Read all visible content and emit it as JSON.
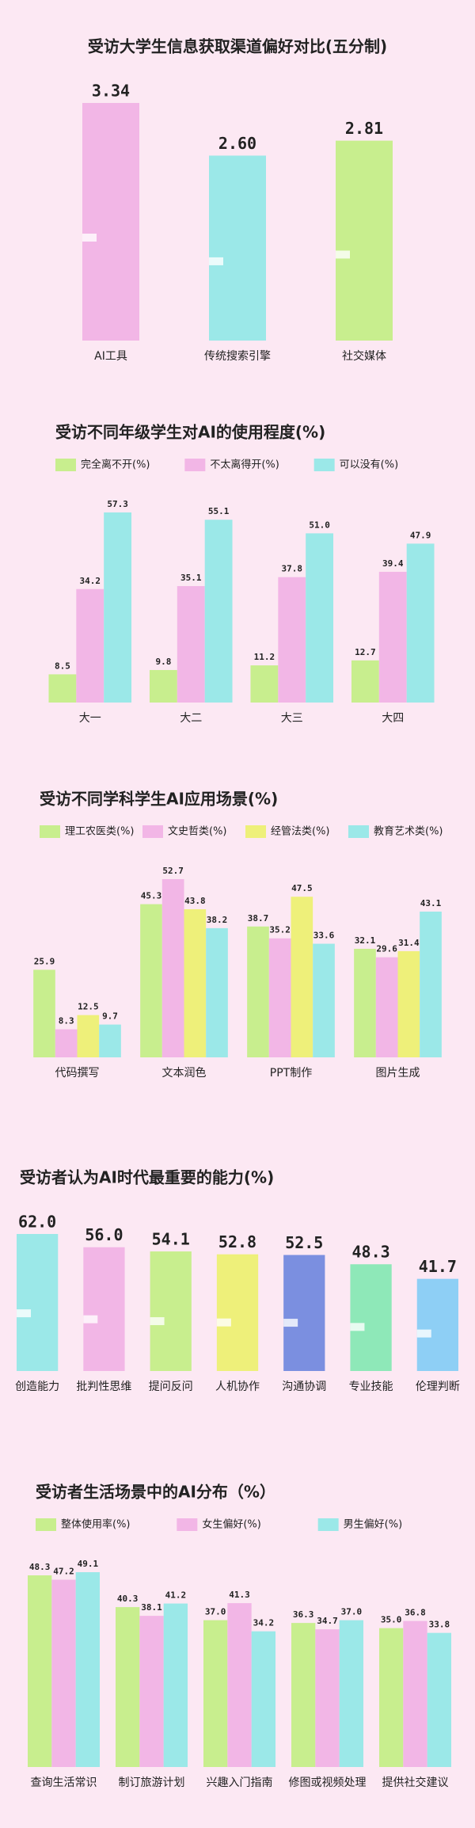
{
  "chart_data": [
    {
      "type": "bar",
      "title": "受访大学生信息获取渠道偏好对比(五分制)",
      "categories": [
        "AI工具",
        "传统搜索引擎",
        "社交媒体"
      ],
      "values": [
        3.34,
        2.6,
        2.81
      ],
      "value_labels": [
        "3.34",
        "2.60",
        "2.81"
      ],
      "colors": [
        "#f2b6e6",
        "#9be8e8",
        "#c8ee8e"
      ]
    },
    {
      "type": "grouped-bar",
      "title": "受访不同年级学生对AI的使用程度(%)",
      "categories": [
        "大一",
        "大二",
        "大三",
        "大四"
      ],
      "series": [
        {
          "name": "完全离不开(%)",
          "color": "#c8ee8e",
          "values": [
            8.5,
            9.8,
            11.2,
            12.7
          ]
        },
        {
          "name": "不太离得开(%)",
          "color": "#f2b6e6",
          "values": [
            34.2,
            35.1,
            37.8,
            39.4
          ]
        },
        {
          "name": "可以没有(%)",
          "color": "#9be8e8",
          "values": [
            57.3,
            55.1,
            51.0,
            47.9
          ],
          "value_labels": [
            "57.3",
            "55.1",
            "51.0",
            "47.9"
          ]
        }
      ]
    },
    {
      "type": "grouped-bar",
      "title": "受访不同学科学生AI应用场景(%)",
      "categories": [
        "代码撰写",
        "文本润色",
        "PPT制作",
        "图片生成"
      ],
      "series": [
        {
          "name": "理工农医类(%)",
          "color": "#c8ee8e",
          "values": [
            25.9,
            45.3,
            38.7,
            32.1
          ]
        },
        {
          "name": "文史哲类(%)",
          "color": "#f2b6e6",
          "values": [
            8.3,
            52.7,
            35.2,
            29.6
          ]
        },
        {
          "name": "经管法类(%)",
          "color": "#eef07a",
          "values": [
            12.5,
            43.8,
            47.5,
            31.4
          ]
        },
        {
          "name": "教育艺术类(%)",
          "color": "#9be8e8",
          "values": [
            9.7,
            38.2,
            33.6,
            43.1
          ]
        }
      ]
    },
    {
      "type": "bar",
      "title": "受访者认为AI时代最重要的能力(%)",
      "categories": [
        "创造能力",
        "批判性思维",
        "提问反问",
        "人机协作",
        "沟通协调",
        "专业技能",
        "伦理判断"
      ],
      "values": [
        62.0,
        56.0,
        54.1,
        52.8,
        52.5,
        48.3,
        41.7
      ],
      "value_labels": [
        "62.0",
        "56.0",
        "54.1",
        "52.8",
        "52.5",
        "48.3",
        "41.7"
      ],
      "colors": [
        "#9be8e8",
        "#f2b6e6",
        "#c8ee8e",
        "#eef07a",
        "#7b8fe0",
        "#8ee8b8",
        "#8ecff5"
      ]
    },
    {
      "type": "grouped-bar",
      "title": "受访者生活场景中的AI分布（%）",
      "categories": [
        "查询生活常识",
        "制订旅游计划",
        "兴趣入门指南",
        "修图或视频处理",
        "提供社交建议"
      ],
      "series": [
        {
          "name": "整体使用率(%)",
          "color": "#c8ee8e",
          "values": [
            48.3,
            40.3,
            37.0,
            36.3,
            35.0
          ],
          "value_labels": [
            "48.3",
            "40.3",
            "37.0",
            "36.3",
            "35.0"
          ]
        },
        {
          "name": "女生偏好(%)",
          "color": "#f2b6e6",
          "values": [
            47.2,
            38.1,
            41.3,
            34.7,
            36.8
          ]
        },
        {
          "name": "男生偏好(%)",
          "color": "#9be8e8",
          "values": [
            49.1,
            41.2,
            34.2,
            37.0,
            33.8
          ],
          "value_labels": [
            "49.1",
            "41.2",
            "34.2",
            "37.0",
            "33.8"
          ]
        }
      ]
    }
  ]
}
